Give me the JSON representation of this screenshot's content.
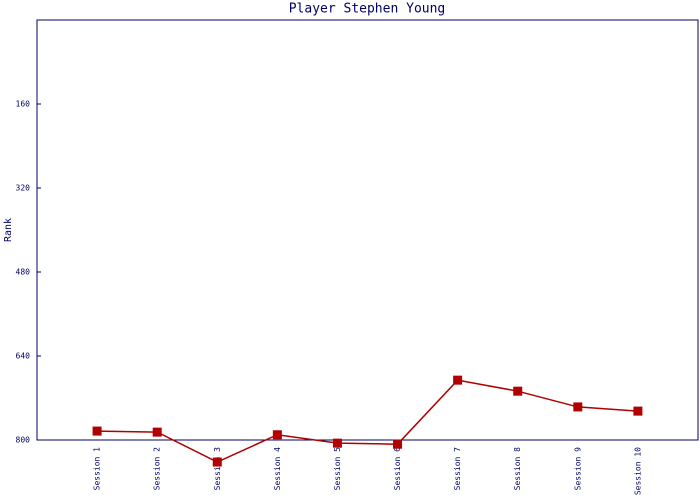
{
  "chart_data": {
    "type": "line",
    "title": "Player Stephen Young",
    "y_label": "Rank",
    "categories": [
      "Session 1",
      "Session 2",
      "Session 3",
      "Session 4",
      "Session 5",
      "Session 6",
      "Session 7",
      "Session 8",
      "Session 9",
      "Session 10"
    ],
    "series": [
      {
        "name": "Rank",
        "color": "#b00000",
        "values": [
          783,
          785,
          842,
          790,
          806,
          808,
          686,
          707,
          737,
          745
        ]
      }
    ],
    "ylim": [
      800,
      0
    ],
    "yticks": [
      160,
      320,
      480,
      640,
      800
    ],
    "grid": false
  }
}
